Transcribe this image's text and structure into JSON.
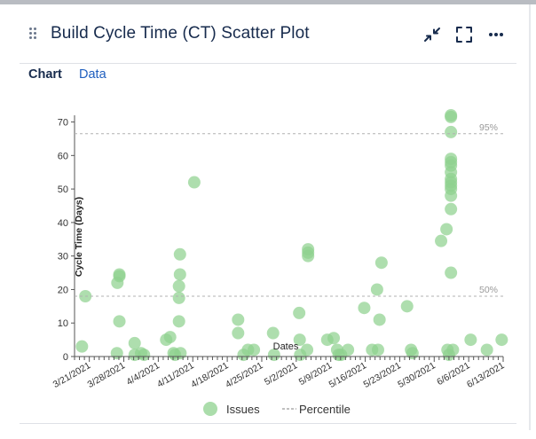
{
  "widget": {
    "title": "Build Cycle Time (CT) Scatter Plot",
    "icons": {
      "drag": "drag-handle-icon",
      "collapse": "collapse-icon",
      "fullscreen": "fullscreen-icon",
      "more": "more-icon"
    }
  },
  "tabs": [
    {
      "label": "Chart",
      "active": true
    },
    {
      "label": "Data",
      "active": false
    }
  ],
  "legend": {
    "issues_label": "Issues",
    "percentile_label": "Percentile"
  },
  "colors": {
    "light_point": "#8fd18f",
    "dark_point": "#2ca02c",
    "tab_link": "#1f5fbf",
    "percentile_line": "#b0b0b0"
  },
  "chart_data": {
    "type": "scatter",
    "title": "",
    "xlabel": "Dates",
    "ylabel": "Cycle Time (Days)",
    "ylim": [
      0,
      72
    ],
    "yticks": [
      0,
      10,
      20,
      30,
      40,
      50,
      60,
      70
    ],
    "xlim": [
      0,
      87
    ],
    "xticks": [
      {
        "label": "3/21/2021",
        "day": 3
      },
      {
        "label": "3/28/2021",
        "day": 10
      },
      {
        "label": "4/4/2021",
        "day": 17
      },
      {
        "label": "4/11/2021",
        "day": 24
      },
      {
        "label": "4/18/2021",
        "day": 31
      },
      {
        "label": "4/25/2021",
        "day": 38
      },
      {
        "label": "5/2/2021",
        "day": 45
      },
      {
        "label": "5/9/2021",
        "day": 52
      },
      {
        "label": "5/16/2021",
        "day": 59
      },
      {
        "label": "5/23/2021",
        "day": 66
      },
      {
        "label": "5/30/2021",
        "day": 73
      },
      {
        "label": "6/6/2021",
        "day": 80
      },
      {
        "label": "6/13/2021",
        "day": 87
      }
    ],
    "percentiles": [
      {
        "label": "95%",
        "value": 66.5
      },
      {
        "label": "50%",
        "value": 18
      }
    ],
    "series": [
      {
        "name": "Issues",
        "points": [
          {
            "x": 1.5,
            "y": 3
          },
          {
            "x": 2.2,
            "y": 18
          },
          {
            "x": 8.7,
            "y": 22
          },
          {
            "x": 8.6,
            "y": 1
          },
          {
            "x": 9.1,
            "y": 24.5
          },
          {
            "x": 9.1,
            "y": 24
          },
          {
            "x": 9.1,
            "y": 10.5
          },
          {
            "x": 12.2,
            "y": 4
          },
          {
            "x": 12.2,
            "y": 0.5
          },
          {
            "x": 13.5,
            "y": 1
          },
          {
            "x": 14.1,
            "y": 0.5
          },
          {
            "x": 18.6,
            "y": 5
          },
          {
            "x": 19.4,
            "y": 5.8
          },
          {
            "x": 20.1,
            "y": 1
          },
          {
            "x": 20.4,
            "y": 0.5
          },
          {
            "x": 21.5,
            "y": 1
          },
          {
            "x": 21.4,
            "y": 30.5
          },
          {
            "x": 21.4,
            "y": 24.5
          },
          {
            "x": 21.2,
            "y": 21
          },
          {
            "x": 21.2,
            "y": 17.5
          },
          {
            "x": 21.2,
            "y": 10.5
          },
          {
            "x": 24.3,
            "y": 52
          },
          {
            "x": 33.2,
            "y": 11
          },
          {
            "x": 33.2,
            "y": 7
          },
          {
            "x": 34.3,
            "y": 0.5
          },
          {
            "x": 35.2,
            "y": 2
          },
          {
            "x": 36.4,
            "y": 2
          },
          {
            "x": 40.3,
            "y": 7
          },
          {
            "x": 40.5,
            "y": 0.5
          },
          {
            "x": 45.6,
            "y": 13
          },
          {
            "x": 45.7,
            "y": 5
          },
          {
            "x": 45.8,
            "y": 0.5
          },
          {
            "x": 47.4,
            "y": 32
          },
          {
            "x": 47.4,
            "y": 31
          },
          {
            "x": 47.4,
            "y": 30
          },
          {
            "x": 47.2,
            "y": 2
          },
          {
            "x": 51.3,
            "y": 5
          },
          {
            "x": 52.6,
            "y": 5.5
          },
          {
            "x": 53.3,
            "y": 2
          },
          {
            "x": 53.6,
            "y": 0.5
          },
          {
            "x": 54.1,
            "y": 0.5
          },
          {
            "x": 55.5,
            "y": 2
          },
          {
            "x": 58.8,
            "y": 14.5
          },
          {
            "x": 60.4,
            "y": 2
          },
          {
            "x": 61.4,
            "y": 20
          },
          {
            "x": 61.6,
            "y": 2
          },
          {
            "x": 61.9,
            "y": 11
          },
          {
            "x": 62.3,
            "y": 28
          },
          {
            "x": 67.5,
            "y": 15
          },
          {
            "x": 68.3,
            "y": 2
          },
          {
            "x": 68.6,
            "y": 1
          },
          {
            "x": 74.4,
            "y": 34.5
          },
          {
            "x": 75.5,
            "y": 38
          },
          {
            "x": 75.7,
            "y": 2
          },
          {
            "x": 76,
            "y": 0.5
          },
          {
            "x": 76.4,
            "y": 72
          },
          {
            "x": 76.4,
            "y": 71.5
          },
          {
            "x": 76.4,
            "y": 67
          },
          {
            "x": 76.4,
            "y": 59
          },
          {
            "x": 76.4,
            "y": 58
          },
          {
            "x": 76.4,
            "y": 57
          },
          {
            "x": 76.4,
            "y": 55
          },
          {
            "x": 76.4,
            "y": 53
          },
          {
            "x": 76.4,
            "y": 52
          },
          {
            "x": 76.4,
            "y": 51
          },
          {
            "x": 76.4,
            "y": 50
          },
          {
            "x": 76.4,
            "y": 48
          },
          {
            "x": 76.4,
            "y": 44
          },
          {
            "x": 76.4,
            "y": 25
          },
          {
            "x": 76.8,
            "y": 2
          },
          {
            "x": 80.4,
            "y": 5
          },
          {
            "x": 83.7,
            "y": 2
          },
          {
            "x": 86.7,
            "y": 5
          }
        ]
      }
    ]
  }
}
